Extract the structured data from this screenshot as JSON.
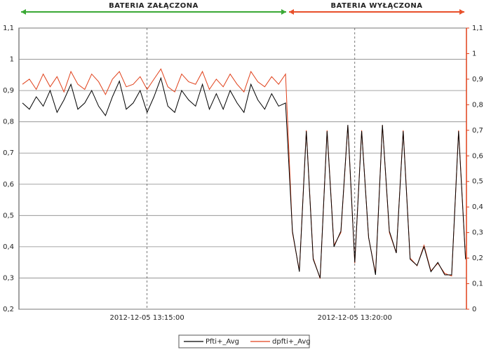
{
  "chart_data": {
    "type": "line",
    "annotations": [
      {
        "text": "BATERIA ZAŁĄCZONA",
        "color": "#3aa835"
      },
      {
        "text": "BATERIA WYŁĄCZONA",
        "color": "#e8502a"
      }
    ],
    "categories": [
      null,
      null,
      null,
      null,
      null,
      null,
      null,
      null,
      null,
      null,
      null,
      null,
      null,
      null,
      null,
      null,
      null,
      null,
      "2012-12-05 13:15:00",
      null,
      null,
      null,
      null,
      null,
      null,
      null,
      null,
      null,
      null,
      null,
      null,
      null,
      null,
      null,
      null,
      null,
      null,
      null,
      null,
      null,
      null,
      null,
      null,
      null,
      null,
      null,
      null,
      null,
      "2012-12-05 13:20:00",
      null,
      null,
      null,
      null,
      null,
      null,
      null,
      null,
      null,
      null,
      null,
      null,
      null,
      null,
      null,
      null
    ],
    "series": [
      {
        "name": "Pfti+_Avg",
        "color": "#000000",
        "axis": "y",
        "values": [
          0.86,
          0.84,
          0.88,
          0.85,
          0.9,
          0.83,
          0.87,
          0.92,
          0.84,
          0.86,
          0.9,
          0.85,
          0.82,
          0.88,
          0.93,
          0.84,
          0.86,
          0.9,
          0.83,
          0.88,
          0.94,
          0.85,
          0.83,
          0.9,
          0.87,
          0.85,
          0.92,
          0.84,
          0.89,
          0.84,
          0.9,
          0.86,
          0.83,
          0.92,
          0.87,
          0.84,
          0.89,
          0.85,
          0.86,
          0.45,
          0.32,
          0.77,
          0.36,
          0.3,
          0.77,
          0.4,
          0.45,
          0.79,
          0.35,
          0.77,
          0.43,
          0.31,
          0.79,
          0.45,
          0.38,
          0.77,
          0.36,
          0.34,
          0.4,
          0.32,
          0.35,
          0.31,
          0.31,
          0.77,
          0.36
        ]
      },
      {
        "name": "dpfti+_Avg",
        "color": "#e0401a",
        "axis": "y2",
        "values": [
          0.88,
          0.9,
          0.86,
          0.92,
          0.87,
          0.91,
          0.85,
          0.93,
          0.88,
          0.86,
          0.92,
          0.89,
          0.84,
          0.9,
          0.93,
          0.87,
          0.88,
          0.91,
          0.86,
          0.9,
          0.94,
          0.87,
          0.85,
          0.92,
          0.89,
          0.88,
          0.93,
          0.86,
          0.9,
          0.87,
          0.92,
          0.88,
          0.85,
          0.93,
          0.89,
          0.87,
          0.91,
          0.88,
          0.92,
          0.3,
          0.15,
          0.7,
          0.2,
          0.12,
          0.7,
          0.25,
          0.3,
          0.72,
          0.18,
          0.7,
          0.28,
          0.14,
          0.72,
          0.3,
          0.22,
          0.7,
          0.2,
          0.17,
          0.25,
          0.15,
          0.18,
          0.14,
          0.13,
          0.7,
          0.2
        ]
      }
    ],
    "ylim": [
      0.2,
      1.1
    ],
    "yticks": [
      {
        "value": 0.2,
        "label": "0,2"
      },
      {
        "value": 0.3,
        "label": "0,3"
      },
      {
        "value": 0.4,
        "label": "0,4"
      },
      {
        "value": 0.5,
        "label": "0,5"
      },
      {
        "value": 0.6,
        "label": "0,6"
      },
      {
        "value": 0.7,
        "label": "0,7"
      },
      {
        "value": 0.8,
        "label": "0,8"
      },
      {
        "value": 0.9,
        "label": "0,9"
      },
      1,
      {
        "value": 1.1,
        "label": "1,1"
      }
    ],
    "y2lim": [
      0,
      1.1
    ],
    "y2ticks": [
      0,
      {
        "value": 0.1,
        "label": "0,1"
      },
      {
        "value": 0.2,
        "label": "0,2"
      },
      {
        "value": 0.3,
        "label": "0,3"
      },
      {
        "value": 0.4,
        "label": "0,4"
      },
      {
        "value": 0.5,
        "label": "0,5"
      },
      {
        "value": 0.6,
        "label": "0,6"
      },
      {
        "value": 0.7,
        "label": "0,7"
      },
      {
        "value": 0.8,
        "label": "0,8"
      },
      {
        "value": 0.9,
        "label": "0,9"
      },
      1,
      {
        "value": 1.1,
        "label": "1,1"
      }
    ],
    "y2color": "#e0401a",
    "grid": true
  }
}
